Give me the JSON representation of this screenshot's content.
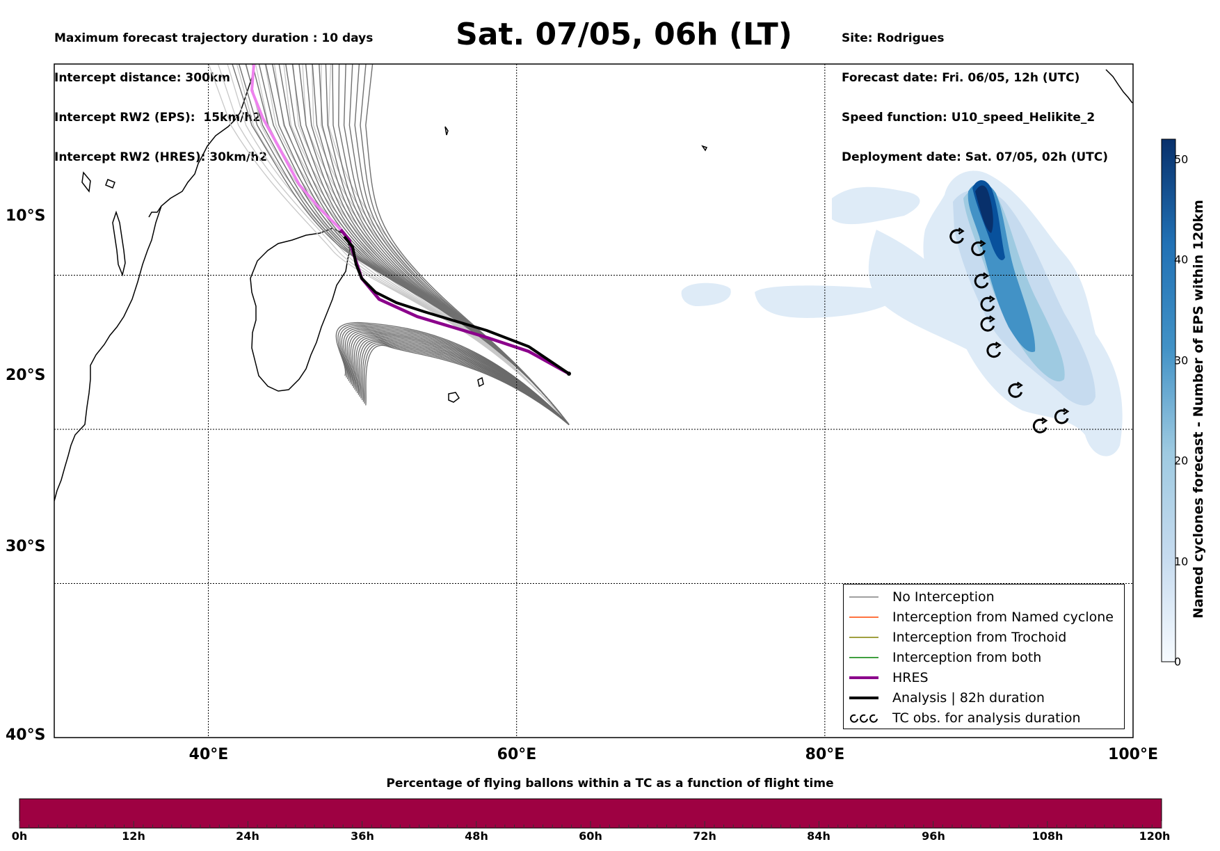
{
  "header_left": [
    "Maximum forecast trajectory duration : 10 days",
    "Intercept distance: 300km",
    "Intercept RW2 (EPS):  15km/h2",
    "Intercept RW2 (HRES): 30km/h2"
  ],
  "header_right": [
    "Site: Rodrigues",
    "Forecast date: Fri. 06/05, 12h (UTC)",
    "Speed function: U10_speed_Helikite_2",
    "Deployment date: Sat. 07/05, 02h (UTC)"
  ],
  "title": "Sat. 07/05, 06h (LT)",
  "map": {
    "lon_range": [
      30,
      100
    ],
    "lat_range": [
      -40,
      3.7
    ],
    "lat_ticks": [
      "10°S",
      "20°S",
      "30°S",
      "40°S"
    ],
    "lon_ticks": [
      "40°E",
      "60°E",
      "80°E",
      "100°E"
    ],
    "deployment_site": {
      "lon": 63.4,
      "lat": -19.7
    },
    "tc_obs": [
      {
        "lon": 88.6,
        "lat": -7.5
      },
      {
        "lon": 90.0,
        "lat": -8.3
      },
      {
        "lon": 90.2,
        "lat": -10.4
      },
      {
        "lon": 90.6,
        "lat": -11.9
      },
      {
        "lon": 90.6,
        "lat": -13.2
      },
      {
        "lon": 91.0,
        "lat": -14.9
      },
      {
        "lon": 92.4,
        "lat": -17.5
      },
      {
        "lon": 94.0,
        "lat": -19.8
      },
      {
        "lon": 95.4,
        "lat": -19.2
      }
    ]
  },
  "legend": {
    "items": [
      {
        "label": "No Interception",
        "color": "#808080"
      },
      {
        "label": "Interception from Named cyclone",
        "color": "#ff4500"
      },
      {
        "label": "Interception from Trochoid",
        "color": "#808000"
      },
      {
        "label": "Interception from both",
        "color": "#008000"
      },
      {
        "label": "HRES",
        "color": "#8b008b"
      },
      {
        "label": "Analysis | 82h duration",
        "color": "#000000"
      },
      {
        "label": "TC obs. for analysis duration",
        "color": "#000000"
      }
    ]
  },
  "colorbar": {
    "label": "Named cyclones forecast - Number of EPS within 120km",
    "ticks": [
      "0",
      "10",
      "20",
      "30",
      "40",
      "50"
    ],
    "range": [
      0,
      52
    ],
    "color_low": "#deebf7",
    "color_high": "#08306b"
  },
  "timebar": {
    "title": "Percentage of flying ballons within a TC as a function of flight time",
    "ticks": [
      "0h",
      "12h",
      "24h",
      "36h",
      "48h",
      "60h",
      "72h",
      "84h",
      "96h",
      "108h",
      "120h"
    ],
    "color": "#9e0142"
  }
}
